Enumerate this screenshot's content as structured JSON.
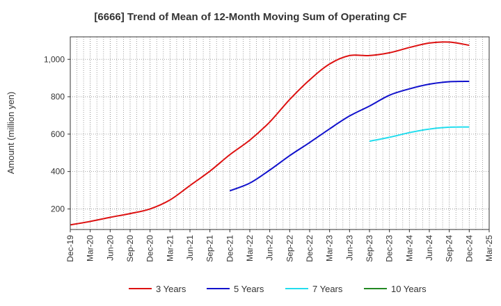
{
  "chart_data": {
    "type": "line",
    "title": "[6666]  Trend of Mean of 12-Month Moving Sum of Operating CF",
    "xlabel": "",
    "ylabel": "Amount (million yen)",
    "ylim": [
      90,
      1120
    ],
    "yticks": [
      200,
      400,
      600,
      800,
      1000
    ],
    "ytick_labels": [
      "200",
      "400",
      "600",
      "800",
      "1,000"
    ],
    "xtick_labels": [
      "Dec-19",
      "Mar-20",
      "Jun-20",
      "Sep-20",
      "Dec-20",
      "Mar-21",
      "Jun-21",
      "Sep-21",
      "Dec-21",
      "Mar-22",
      "Jun-22",
      "Sep-22",
      "Dec-22",
      "Mar-23",
      "Jun-23",
      "Sep-23",
      "Dec-23",
      "Mar-24",
      "Jun-24",
      "Sep-24",
      "Dec-24",
      "Mar-25"
    ],
    "x": [
      "Dec-19",
      "Mar-20",
      "Jun-20",
      "Sep-20",
      "Dec-20",
      "Mar-21",
      "Jun-21",
      "Sep-21",
      "Dec-21",
      "Mar-22",
      "Jun-22",
      "Sep-22",
      "Dec-22",
      "Mar-23",
      "Jun-23",
      "Sep-23",
      "Dec-23",
      "Mar-24",
      "Jun-24",
      "Sep-24",
      "Dec-24"
    ],
    "series": [
      {
        "name": "3 Years",
        "color": "#dd1111",
        "values": [
          115,
          133,
          155,
          175,
          200,
          248,
          325,
          402,
          490,
          568,
          665,
          785,
          890,
          975,
          1020,
          1020,
          1035,
          1063,
          1087,
          1092,
          1075
        ]
      },
      {
        "name": "5 Years",
        "color": "#1111cc",
        "values": [
          null,
          null,
          null,
          null,
          null,
          null,
          null,
          null,
          297,
          338,
          408,
          485,
          555,
          628,
          697,
          750,
          808,
          842,
          867,
          880,
          882
        ]
      },
      {
        "name": "7 Years",
        "color": "#22ddee",
        "values": [
          null,
          null,
          null,
          null,
          null,
          null,
          null,
          null,
          null,
          null,
          null,
          null,
          null,
          null,
          null,
          562,
          583,
          608,
          627,
          637,
          638
        ]
      },
      {
        "name": "10 Years",
        "color": "#228822",
        "values": [
          null,
          null,
          null,
          null,
          null,
          null,
          null,
          null,
          null,
          null,
          null,
          null,
          null,
          null,
          null,
          null,
          null,
          null,
          null,
          null,
          null
        ]
      }
    ],
    "grid": true,
    "legend_position": "bottom"
  }
}
